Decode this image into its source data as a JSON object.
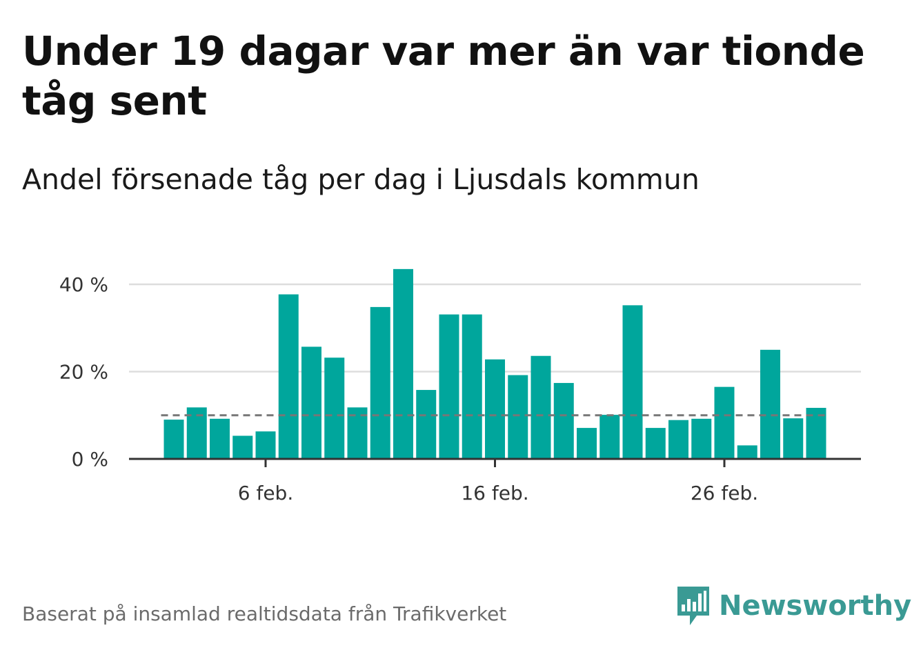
{
  "title": "Under 19 dagar var mer än var tionde tåg sent",
  "subtitle": "Andel försenade tåg per dag i Ljusdals kommun",
  "source": "Baserat på insamlad realtidsdata från Trafikverket",
  "logo": {
    "text": "Newsworthy",
    "icon": "newsworthy-bar-icon"
  },
  "colors": {
    "bar": "#00a69c",
    "reference_line": "#777777",
    "grid": "#dddddd",
    "axis": "#333333"
  },
  "chart_data": {
    "type": "bar",
    "x": [
      "2 feb.",
      "3 feb.",
      "4 feb.",
      "5 feb.",
      "6 feb.",
      "7 feb.",
      "8 feb.",
      "9 feb.",
      "10 feb.",
      "11 feb.",
      "12 feb.",
      "13 feb.",
      "14 feb.",
      "15 feb.",
      "16 feb.",
      "17 feb.",
      "18 feb.",
      "19 feb.",
      "20 feb.",
      "21 feb.",
      "22 feb.",
      "23 feb.",
      "24 feb.",
      "25 feb.",
      "26 feb.",
      "27 feb.",
      "28 feb.",
      "29 feb.",
      "1 mar."
    ],
    "values": [
      9,
      11.8,
      9.2,
      5.3,
      6.3,
      37.7,
      25.7,
      23.2,
      11.8,
      34.8,
      43.5,
      15.8,
      33.1,
      33.1,
      22.8,
      19.2,
      23.6,
      17.4,
      7.1,
      10.1,
      35.2,
      7.1,
      8.9,
      9.2,
      16.5,
      3.1,
      25,
      9.3,
      11.7
    ],
    "reference_line": 10,
    "xticks": [
      "6 feb.",
      "16 feb.",
      "26 feb."
    ],
    "yticks": [
      "0 %",
      "20 %",
      "40 %"
    ],
    "ytick_values": [
      0,
      20,
      40
    ],
    "ylim": [
      0,
      45
    ],
    "xlabel": "",
    "ylabel": "",
    "grid": true
  }
}
